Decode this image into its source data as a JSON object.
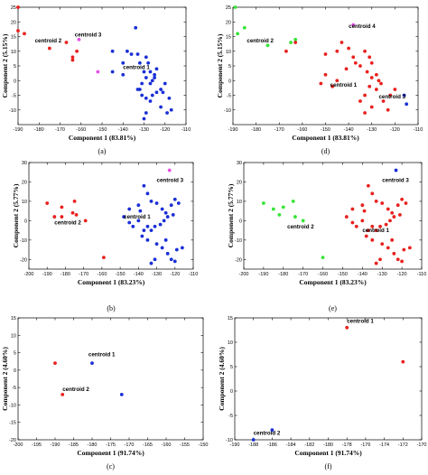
{
  "colors": {
    "red": "#e8211e",
    "blue": "#1a2fd6",
    "magenta": "#e64ee6",
    "green": "#35e535",
    "black": "#000000"
  },
  "chart_data": [
    {
      "type": "scatter",
      "panel_label": "(a)",
      "xlabel": "Component 1 (83.81%)",
      "ylabel": "Component 2 (5.15%)",
      "xlim": [
        -190,
        -110
      ],
      "ylim": [
        -15,
        25
      ],
      "xticks": [
        -190,
        -180,
        -170,
        -160,
        -150,
        -140,
        -130,
        -120,
        -110
      ],
      "yticks": [
        -10,
        -5,
        0,
        5,
        10,
        15,
        20,
        25
      ],
      "annotations": [
        {
          "text": "centroid 3",
          "x": -163,
          "y": 15
        },
        {
          "text": "centroid 2",
          "x": -182,
          "y": 13
        },
        {
          "text": "centroid 1",
          "x": -140,
          "y": 4
        }
      ],
      "series": [
        {
          "color": "red",
          "points": [
            [
              -190,
              25
            ],
            [
              -190,
              17
            ],
            [
              -187,
              16
            ],
            [
              -175,
              11
            ],
            [
              -167,
              13
            ],
            [
              -162,
              10
            ],
            [
              -164,
              8
            ],
            [
              -164,
              7
            ]
          ]
        },
        {
          "color": "magenta",
          "points": [
            [
              -161,
              14
            ],
            [
              -152,
              3
            ]
          ]
        },
        {
          "color": "blue",
          "points": [
            [
              -134,
              18
            ],
            [
              -145,
              10
            ],
            [
              -140,
              6
            ],
            [
              -138,
              10
            ],
            [
              -136,
              9
            ],
            [
              -132,
              6
            ],
            [
              -133,
              9
            ],
            [
              -129,
              8
            ],
            [
              -128,
              6
            ],
            [
              -127,
              3
            ],
            [
              -125,
              2
            ],
            [
              -124,
              4
            ],
            [
              -125,
              1
            ],
            [
              -126,
              0
            ],
            [
              -129,
              1
            ],
            [
              -130,
              3
            ],
            [
              -131,
              -1
            ],
            [
              -133,
              -3
            ],
            [
              -131,
              -5
            ],
            [
              -129,
              -6
            ],
            [
              -127,
              -7
            ],
            [
              -124,
              -4
            ],
            [
              -122,
              -3
            ],
            [
              -120,
              -1
            ],
            [
              -121,
              -4
            ],
            [
              -118,
              -6
            ],
            [
              -122,
              -9
            ],
            [
              -119,
              -11
            ],
            [
              -117,
              -10
            ],
            [
              -126,
              -5
            ],
            [
              -129,
              -11
            ],
            [
              -130,
              -13
            ],
            [
              -132,
              -3
            ],
            [
              -127,
              -1
            ],
            [
              -145,
              3
            ],
            [
              -140,
              2
            ]
          ]
        }
      ]
    },
    {
      "type": "scatter",
      "panel_label": "(d)",
      "xlabel": "Component 1 (83.81%)",
      "ylabel": "Component 2 (5.15%)",
      "xlim": [
        -190,
        -110
      ],
      "ylim": [
        -15,
        25
      ],
      "xticks": [
        -190,
        -180,
        -170,
        -160,
        -150,
        -140,
        -130,
        -120,
        -110
      ],
      "yticks": [
        -10,
        -5,
        0,
        5,
        10,
        15,
        20,
        25
      ],
      "annotations": [
        {
          "text": "centroid 4",
          "x": -140,
          "y": 18
        },
        {
          "text": "centroid 2",
          "x": -184,
          "y": 13
        },
        {
          "text": "centroid 1",
          "x": -148,
          "y": -2
        },
        {
          "text": "centroid 3",
          "x": -127,
          "y": -6
        }
      ],
      "series": [
        {
          "color": "green",
          "points": [
            [
              -189,
              25
            ],
            [
              -188,
              16
            ],
            [
              -185,
              18
            ],
            [
              -175,
              12
            ],
            [
              -165,
              13
            ],
            [
              -163,
              14
            ]
          ]
        },
        {
          "color": "magenta",
          "points": [
            [
              -138,
              19
            ]
          ]
        },
        {
          "color": "red",
          "points": [
            [
              -163,
              13
            ],
            [
              -167,
              10
            ],
            [
              -150,
              9
            ],
            [
              -145,
              10
            ],
            [
              -143,
              13
            ],
            [
              -140,
              11
            ],
            [
              -138,
              8
            ],
            [
              -137,
              6
            ],
            [
              -135,
              5
            ],
            [
              -133,
              10
            ],
            [
              -131,
              8
            ],
            [
              -130,
              6
            ],
            [
              -132,
              3
            ],
            [
              -130,
              1
            ],
            [
              -128,
              2
            ],
            [
              -127,
              0
            ],
            [
              -126,
              -1
            ],
            [
              -128,
              -3
            ],
            [
              -131,
              -2
            ],
            [
              -133,
              -5
            ],
            [
              -135,
              -7
            ],
            [
              -130,
              -9
            ],
            [
              -125,
              -7
            ],
            [
              -122,
              -5
            ],
            [
              -120,
              -3
            ],
            [
              -123,
              -10
            ],
            [
              -133,
              -11
            ],
            [
              -145,
              0
            ],
            [
              -150,
              2
            ],
            [
              -141,
              4
            ],
            [
              -152,
              -1
            ],
            [
              -147,
              -2
            ]
          ]
        },
        {
          "color": "blue",
          "points": [
            [
              -115,
              -8
            ],
            [
              -116,
              -5
            ]
          ]
        }
      ]
    },
    {
      "type": "scatter",
      "panel_label": "(b)",
      "xlabel": "Component 1 (83.23%)",
      "ylabel": "Component 2 (5.77%)",
      "xlim": [
        -200,
        -110
      ],
      "ylim": [
        -25,
        30
      ],
      "xticks": [
        -200,
        -190,
        -180,
        -170,
        -160,
        -150,
        -140,
        -130,
        -120,
        -110
      ],
      "yticks": [
        -20,
        -10,
        0,
        10,
        20,
        30
      ],
      "annotations": [
        {
          "text": "centroid 3",
          "x": -130,
          "y": 20
        },
        {
          "text": "centroid 2",
          "x": -186,
          "y": -2
        },
        {
          "text": "centroid 1",
          "x": -148,
          "y": 1
        }
      ],
      "series": [
        {
          "color": "magenta",
          "points": [
            [
              -123,
              26
            ]
          ]
        },
        {
          "color": "red",
          "points": [
            [
              -190,
              9
            ],
            [
              -186,
              2
            ],
            [
              -182,
              2
            ],
            [
              -182,
              7
            ],
            [
              -176,
              4
            ],
            [
              -175,
              10
            ],
            [
              -174,
              3
            ],
            [
              -169,
              0
            ],
            [
              -159,
              -19
            ]
          ]
        },
        {
          "color": "blue",
          "points": [
            [
              -148,
              2
            ],
            [
              -145,
              6
            ],
            [
              -140,
              8
            ],
            [
              -137,
              18
            ],
            [
              -135,
              14
            ],
            [
              -133,
              10
            ],
            [
              -130,
              9
            ],
            [
              -127,
              6
            ],
            [
              -125,
              4
            ],
            [
              -122,
              8
            ],
            [
              -120,
              11
            ],
            [
              -118,
              9
            ],
            [
              -121,
              3
            ],
            [
              -124,
              2
            ],
            [
              -126,
              0
            ],
            [
              -128,
              -2
            ],
            [
              -131,
              -3
            ],
            [
              -133,
              -5
            ],
            [
              -135,
              -3
            ],
            [
              -137,
              -5
            ],
            [
              -140,
              0
            ],
            [
              -143,
              -3
            ],
            [
              -145,
              -1
            ],
            [
              -130,
              -12
            ],
            [
              -127,
              -14
            ],
            [
              -124,
              -17
            ],
            [
              -122,
              -20
            ],
            [
              -120,
              -21
            ],
            [
              -125,
              -10
            ],
            [
              -135,
              -10
            ],
            [
              -138,
              -8
            ],
            [
              -119,
              -15
            ],
            [
              -116,
              -14
            ],
            [
              -131,
              -20
            ],
            [
              -133,
              -22
            ],
            [
              -139,
              5
            ]
          ]
        }
      ]
    },
    {
      "type": "scatter",
      "panel_label": "(e)",
      "xlabel": "Component 1 (83.23%)",
      "ylabel": "Component 2 (5.77%)",
      "xlim": [
        -200,
        -110
      ],
      "ylim": [
        -25,
        30
      ],
      "xticks": [
        -200,
        -190,
        -180,
        -170,
        -160,
        -150,
        -140,
        -130,
        -120,
        -110
      ],
      "yticks": [
        -20,
        -10,
        0,
        10,
        20,
        30
      ],
      "annotations": [
        {
          "text": "centroid 3",
          "x": -130,
          "y": 20
        },
        {
          "text": "centroid 2",
          "x": -178,
          "y": -4
        },
        {
          "text": "centroid 1",
          "x": -140,
          "y": -6
        }
      ],
      "series": [
        {
          "color": "blue",
          "points": [
            [
              -123,
              26
            ]
          ]
        },
        {
          "color": "green",
          "points": [
            [
              -190,
              9
            ],
            [
              -185,
              6
            ],
            [
              -182,
              3
            ],
            [
              -180,
              7
            ],
            [
              -175,
              10
            ],
            [
              -174,
              2
            ],
            [
              -170,
              0
            ],
            [
              -160,
              -19
            ]
          ]
        },
        {
          "color": "red",
          "points": [
            [
              -148,
              2
            ],
            [
              -145,
              6
            ],
            [
              -140,
              8
            ],
            [
              -137,
              18
            ],
            [
              -135,
              14
            ],
            [
              -133,
              10
            ],
            [
              -130,
              9
            ],
            [
              -127,
              6
            ],
            [
              -125,
              4
            ],
            [
              -122,
              8
            ],
            [
              -120,
              11
            ],
            [
              -118,
              9
            ],
            [
              -121,
              3
            ],
            [
              -124,
              2
            ],
            [
              -126,
              0
            ],
            [
              -128,
              -2
            ],
            [
              -131,
              -3
            ],
            [
              -133,
              -5
            ],
            [
              -135,
              -3
            ],
            [
              -137,
              -5
            ],
            [
              -140,
              0
            ],
            [
              -143,
              -3
            ],
            [
              -145,
              -1
            ],
            [
              -130,
              -12
            ],
            [
              -127,
              -14
            ],
            [
              -124,
              -17
            ],
            [
              -122,
              -20
            ],
            [
              -120,
              -21
            ],
            [
              -125,
              -10
            ],
            [
              -135,
              -10
            ],
            [
              -138,
              -8
            ],
            [
              -119,
              -15
            ],
            [
              -116,
              -14
            ],
            [
              -131,
              -20
            ],
            [
              -133,
              -22
            ],
            [
              -139,
              5
            ]
          ]
        }
      ]
    },
    {
      "type": "scatter",
      "panel_label": "(c)",
      "xlabel": "Component 1 (91.74%)",
      "ylabel": "Component 2 (4.60%)",
      "xlim": [
        -200,
        -150
      ],
      "ylim": [
        -20,
        15
      ],
      "xticks": [
        -200,
        -195,
        -190,
        -185,
        -180,
        -175,
        -170,
        -165,
        -160,
        -155,
        -150
      ],
      "yticks": [
        -20,
        -15,
        -10,
        -5,
        0,
        5,
        10,
        15
      ],
      "annotations": [
        {
          "text": "centroid 1",
          "x": -181,
          "y": 4
        },
        {
          "text": "centroid 2",
          "x": -188,
          "y": -6
        }
      ],
      "series": [
        {
          "color": "red",
          "points": [
            [
              -190,
              2
            ],
            [
              -188,
              -7
            ]
          ]
        },
        {
          "color": "blue",
          "points": [
            [
              -180,
              2
            ],
            [
              -172,
              -7
            ]
          ]
        }
      ]
    },
    {
      "type": "scatter",
      "panel_label": "(f)",
      "xlabel": "Component 1 (91.74%)",
      "ylabel": "Component 2 (4.60%)",
      "xlim": [
        -190,
        -170
      ],
      "ylim": [
        -10,
        15
      ],
      "xticks": [
        -190,
        -188,
        -186,
        -184,
        -182,
        -180,
        -178,
        -176,
        -174,
        -172,
        -170
      ],
      "yticks": [
        -10,
        -5,
        0,
        5,
        10,
        15
      ],
      "annotations": [
        {
          "text": "centroid 1",
          "x": -178,
          "y": 14
        },
        {
          "text": "centroid 2",
          "x": -188,
          "y": -9
        }
      ],
      "series": [
        {
          "color": "red",
          "points": [
            [
              -178,
              13
            ],
            [
              -172,
              6
            ]
          ]
        },
        {
          "color": "blue",
          "points": [
            [
              -188,
              -10
            ],
            [
              -186,
              -8
            ]
          ]
        }
      ]
    }
  ]
}
